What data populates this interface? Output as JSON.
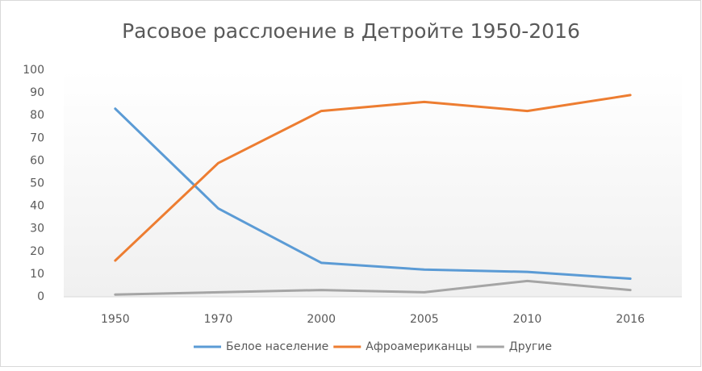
{
  "chart_data": {
    "type": "line",
    "title": "Расовое расслоение в Детройте 1950-2016",
    "categories": [
      "1950",
      "1970",
      "2000",
      "2005",
      "2010",
      "2016"
    ],
    "series": [
      {
        "name": "Белое население",
        "color": "#5b9bd5",
        "values": [
          83,
          39,
          15,
          12,
          11,
          8
        ]
      },
      {
        "name": "Афроамериканцы",
        "color": "#ed7d31",
        "values": [
          16,
          59,
          82,
          86,
          82,
          89
        ]
      },
      {
        "name": "Другие",
        "color": "#a5a5a5",
        "values": [
          1,
          2,
          3,
          2,
          7,
          3
        ]
      }
    ],
    "ylim": [
      0,
      100
    ],
    "yticks": [
      0,
      10,
      20,
      30,
      40,
      50,
      60,
      70,
      80,
      90,
      100
    ],
    "legend": "bottom"
  }
}
